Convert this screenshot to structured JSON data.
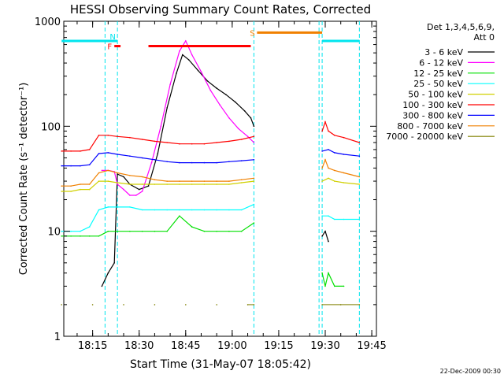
{
  "chart_data": {
    "type": "line",
    "title": "HESSI Observing Summary Count Rates, Corrected",
    "xlabel": "Start Time (31-May-07 18:05:42)",
    "ylabel": "Corrected Count Rate (s⁻¹ detector⁻¹)",
    "x_scale": "time",
    "y_scale": "log",
    "xlim": [
      "18:05:42",
      "19:46:30"
    ],
    "ylim": [
      1,
      1000
    ],
    "x_ticks": [
      "18:15",
      "18:30",
      "18:45",
      "19:00",
      "19:15",
      "19:30",
      "19:45"
    ],
    "y_ticks": [
      "1",
      "10",
      "100",
      "1000"
    ],
    "legend": {
      "placement": "right",
      "header": [
        "Det 1,3,4,5,6,9,",
        "Att 0"
      ]
    },
    "footer": "22-Dec-2009 00:30",
    "gaps": [
      [
        "19:07",
        "19:28"
      ],
      [
        "19:36",
        "19:41"
      ]
    ],
    "vertical_markers": [
      "18:19",
      "18:23",
      "19:07",
      "19:28",
      "19:29",
      "19:41"
    ],
    "flag_bars": [
      {
        "label": "",
        "color": "#00e5ee",
        "start": "18:05",
        "end": "18:23",
        "level": 650
      },
      {
        "label": "N",
        "color": "#00e5ee",
        "start": "18:23",
        "end": "18:23",
        "level": 720
      },
      {
        "label": "F",
        "color": "#ff0000",
        "start": "18:22",
        "end": "18:24",
        "level": 580
      },
      {
        "label": "",
        "color": "#ff0000",
        "start": "18:33",
        "end": "19:06",
        "level": 580
      },
      {
        "label": "S",
        "color": "#f08000",
        "start": "19:08",
        "end": "19:29",
        "level": 780
      },
      {
        "label": "",
        "color": "#00e5ee",
        "start": "19:29",
        "end": "19:41",
        "level": 650
      }
    ],
    "series": [
      {
        "name": "3 - 6 keV",
        "color": "#000000",
        "x": [
          "18:18",
          "18:20",
          "18:22",
          "18:23",
          "18:25",
          "18:27",
          "18:30",
          "18:33",
          "18:36",
          "18:39",
          "18:42",
          "18:44",
          "18:46",
          "18:49",
          "18:52",
          "18:55",
          "18:58",
          "19:01",
          "19:04",
          "19:06",
          "19:07",
          "19:29",
          "19:30",
          "19:31"
        ],
        "y": [
          3,
          4,
          5,
          35,
          33,
          28,
          25,
          27,
          55,
          150,
          320,
          480,
          430,
          340,
          270,
          230,
          200,
          170,
          140,
          120,
          100,
          9,
          10,
          8
        ]
      },
      {
        "name": "6 - 12 keV",
        "color": "#ff00ff",
        "x": [
          "18:18",
          "18:20",
          "18:22",
          "18:23",
          "18:25",
          "18:27",
          "18:29",
          "18:31",
          "18:34",
          "18:37",
          "18:40",
          "18:43",
          "18:45",
          "18:47",
          "18:50",
          "18:53",
          "18:56",
          "18:59",
          "19:02",
          "19:05",
          "19:07"
        ],
        "y": [
          38,
          38,
          37,
          28,
          25,
          22,
          22,
          24,
          45,
          100,
          250,
          520,
          650,
          480,
          330,
          220,
          160,
          120,
          95,
          80,
          70
        ]
      },
      {
        "name": "12 - 25 keV",
        "color": "#00e000",
        "x": [
          "18:05",
          "18:08",
          "18:11",
          "18:14",
          "18:17",
          "18:20",
          "18:23",
          "18:27",
          "18:31",
          "18:35",
          "18:39",
          "18:43",
          "18:47",
          "18:51",
          "18:55",
          "18:59",
          "19:03",
          "19:07",
          "19:29",
          "19:30",
          "19:31",
          "19:33",
          "19:36"
        ],
        "y": [
          9,
          9,
          9,
          9,
          9,
          10,
          10,
          10,
          10,
          10,
          10,
          14,
          11,
          10,
          10,
          10,
          10,
          12,
          4,
          3,
          4,
          3,
          3
        ]
      },
      {
        "name": "25 - 50 keV",
        "color": "#00ffff",
        "x": [
          "18:05",
          "18:08",
          "18:11",
          "18:14",
          "18:17",
          "18:20",
          "18:23",
          "18:27",
          "18:31",
          "18:35",
          "18:39",
          "18:43",
          "18:47",
          "18:51",
          "18:55",
          "18:59",
          "19:03",
          "19:07",
          "19:29",
          "19:31",
          "19:33",
          "19:36",
          "19:41"
        ],
        "y": [
          10,
          10,
          10,
          11,
          16,
          17,
          17,
          17,
          16,
          16,
          16,
          16,
          16,
          16,
          16,
          16,
          16,
          18,
          14,
          14,
          13,
          13,
          13
        ]
      },
      {
        "name": "50 - 100 keV",
        "color": "#d0d000",
        "x": [
          "18:05",
          "18:08",
          "18:11",
          "18:14",
          "18:17",
          "18:20",
          "18:23",
          "18:27",
          "18:31",
          "18:35",
          "18:39",
          "18:43",
          "18:47",
          "18:51",
          "18:55",
          "18:59",
          "19:03",
          "19:07",
          "19:29",
          "19:31",
          "19:33",
          "19:36",
          "19:41"
        ],
        "y": [
          24,
          24,
          25,
          25,
          30,
          30,
          29,
          28,
          28,
          28,
          28,
          28,
          28,
          28,
          28,
          28,
          29,
          30,
          30,
          32,
          30,
          29,
          28
        ]
      },
      {
        "name": "100 - 300 keV",
        "color": "#ff0000",
        "x": [
          "18:05",
          "18:08",
          "18:11",
          "18:14",
          "18:17",
          "18:20",
          "18:23",
          "18:27",
          "18:31",
          "18:35",
          "18:39",
          "18:43",
          "18:47",
          "18:51",
          "18:55",
          "18:59",
          "19:03",
          "19:07",
          "19:29",
          "19:30",
          "19:31",
          "19:33",
          "19:36",
          "19:41"
        ],
        "y": [
          58,
          58,
          58,
          60,
          82,
          82,
          80,
          78,
          75,
          72,
          70,
          68,
          68,
          68,
          70,
          72,
          75,
          80,
          90,
          110,
          90,
          82,
          78,
          70
        ]
      },
      {
        "name": "300 - 800 keV",
        "color": "#0000ff",
        "x": [
          "18:05",
          "18:08",
          "18:11",
          "18:14",
          "18:17",
          "18:20",
          "18:23",
          "18:27",
          "18:31",
          "18:35",
          "18:39",
          "18:43",
          "18:47",
          "18:51",
          "18:55",
          "18:59",
          "19:03",
          "19:07",
          "19:29",
          "19:31",
          "19:33",
          "19:36",
          "19:41"
        ],
        "y": [
          42,
          42,
          42,
          43,
          55,
          56,
          54,
          52,
          50,
          48,
          46,
          45,
          45,
          45,
          45,
          46,
          47,
          48,
          58,
          60,
          56,
          54,
          52
        ]
      },
      {
        "name": "800 - 7000 keV",
        "color": "#f08000",
        "x": [
          "18:05",
          "18:08",
          "18:11",
          "18:14",
          "18:17",
          "18:20",
          "18:23",
          "18:27",
          "18:31",
          "18:35",
          "18:39",
          "18:43",
          "18:47",
          "18:51",
          "18:55",
          "18:59",
          "19:03",
          "19:07",
          "19:29",
          "19:30",
          "19:31",
          "19:33",
          "19:36",
          "19:41"
        ],
        "y": [
          27,
          27,
          28,
          28,
          36,
          38,
          36,
          34,
          33,
          31,
          30,
          30,
          30,
          30,
          30,
          30,
          31,
          32,
          40,
          48,
          40,
          38,
          36,
          33
        ]
      },
      {
        "name": "7000 - 20000 keV",
        "color": "#808000",
        "x": [
          "18:05",
          "18:15",
          "18:25",
          "18:35",
          "18:45",
          "18:55",
          "19:05",
          "19:07",
          "19:29",
          "19:35",
          "19:41"
        ],
        "y": [
          2,
          2,
          2,
          2,
          2,
          2,
          2,
          2,
          2,
          2,
          2
        ]
      }
    ]
  }
}
